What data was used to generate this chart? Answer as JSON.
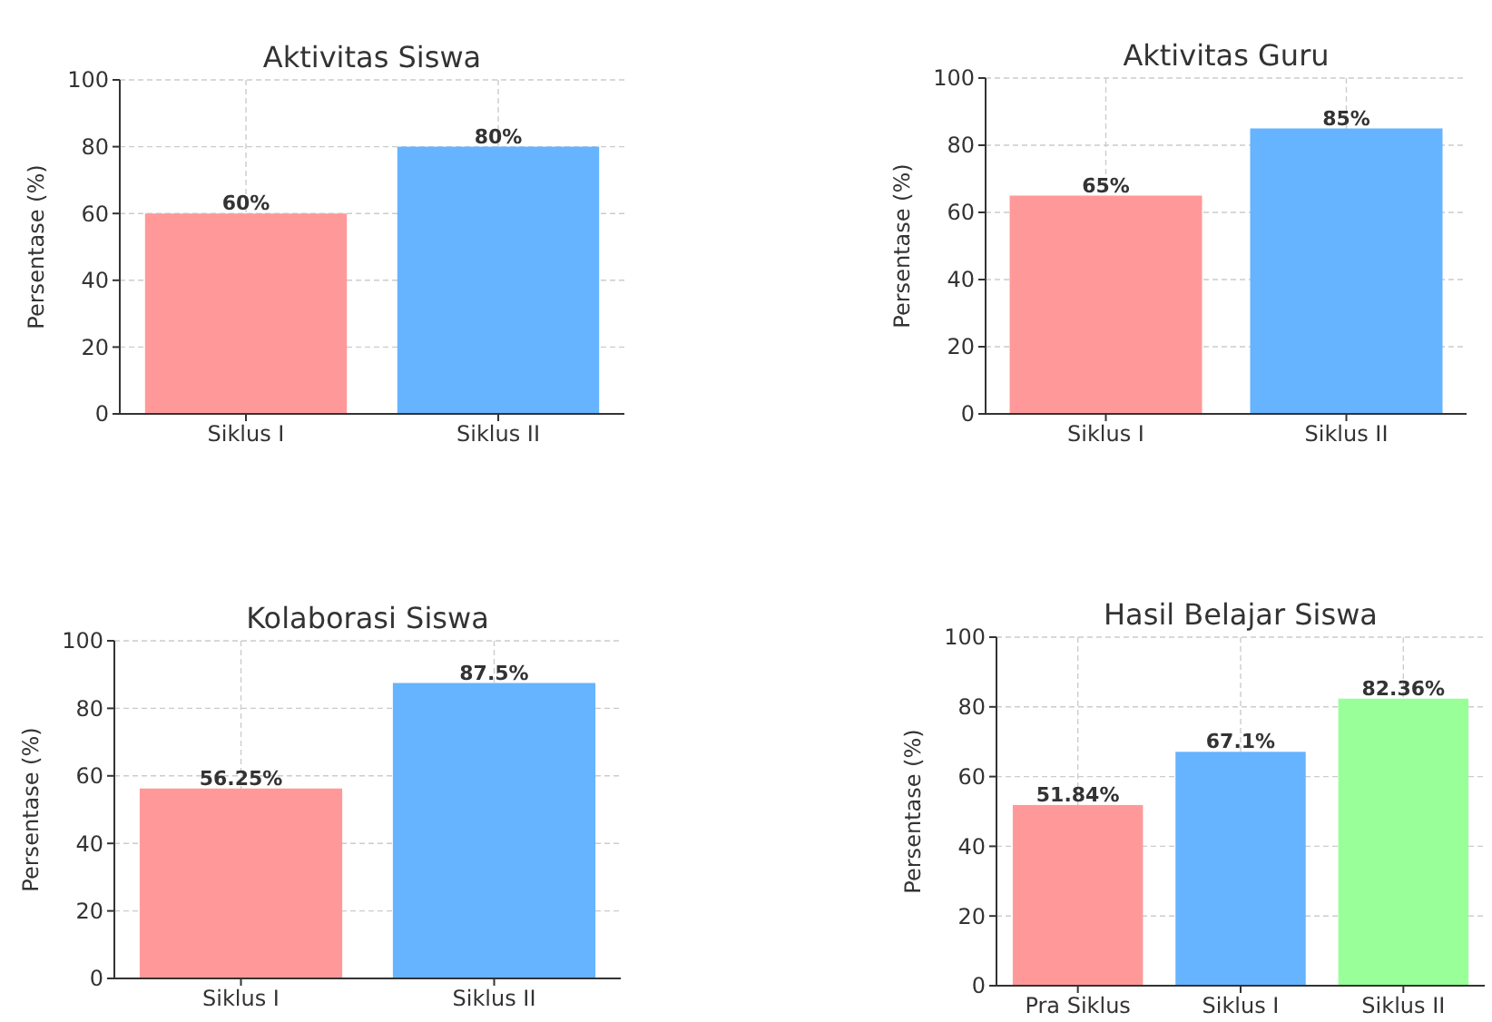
{
  "chart_data": [
    {
      "type": "bar",
      "title": "Aktivitas Siswa",
      "ylabel": "Persentase (%)",
      "categories": [
        "Siklus I",
        "Siklus II"
      ],
      "values": [
        60,
        80
      ],
      "colors": [
        "#ff9999",
        "#66b3ff"
      ],
      "value_labels": [
        "60%",
        "80%"
      ],
      "ylim": [
        0,
        100
      ],
      "yticks": [
        0,
        20,
        40,
        60,
        80,
        100
      ],
      "grid": true
    },
    {
      "type": "bar",
      "title": "Aktivitas Guru",
      "ylabel": "Persentase (%)",
      "categories": [
        "Siklus I",
        "Siklus II"
      ],
      "values": [
        65,
        85
      ],
      "colors": [
        "#ff9999",
        "#66b3ff"
      ],
      "value_labels": [
        "65%",
        "85%"
      ],
      "ylim": [
        0,
        100
      ],
      "yticks": [
        0,
        20,
        40,
        60,
        80,
        100
      ],
      "grid": true
    },
    {
      "type": "bar",
      "title": "Kolaborasi Siswa",
      "ylabel": "Persentase (%)",
      "categories": [
        "Siklus I",
        "Siklus II"
      ],
      "values": [
        56.25,
        87.5
      ],
      "colors": [
        "#ff9999",
        "#66b3ff"
      ],
      "value_labels": [
        "56.25%",
        "87.5%"
      ],
      "ylim": [
        0,
        100
      ],
      "yticks": [
        0,
        20,
        40,
        60,
        80,
        100
      ],
      "grid": true
    },
    {
      "type": "bar",
      "title": "Hasil Belajar Siswa",
      "ylabel": "Persentase (%)",
      "categories": [
        "Pra Siklus",
        "Siklus I",
        "Siklus II"
      ],
      "values": [
        51.84,
        67.1,
        82.36
      ],
      "colors": [
        "#ff9999",
        "#66b3ff",
        "#99ff99"
      ],
      "value_labels": [
        "51.84%",
        "67.1%",
        "82.36%"
      ],
      "ylim": [
        0,
        100
      ],
      "yticks": [
        0,
        20,
        40,
        60,
        80,
        100
      ],
      "grid": true
    }
  ]
}
